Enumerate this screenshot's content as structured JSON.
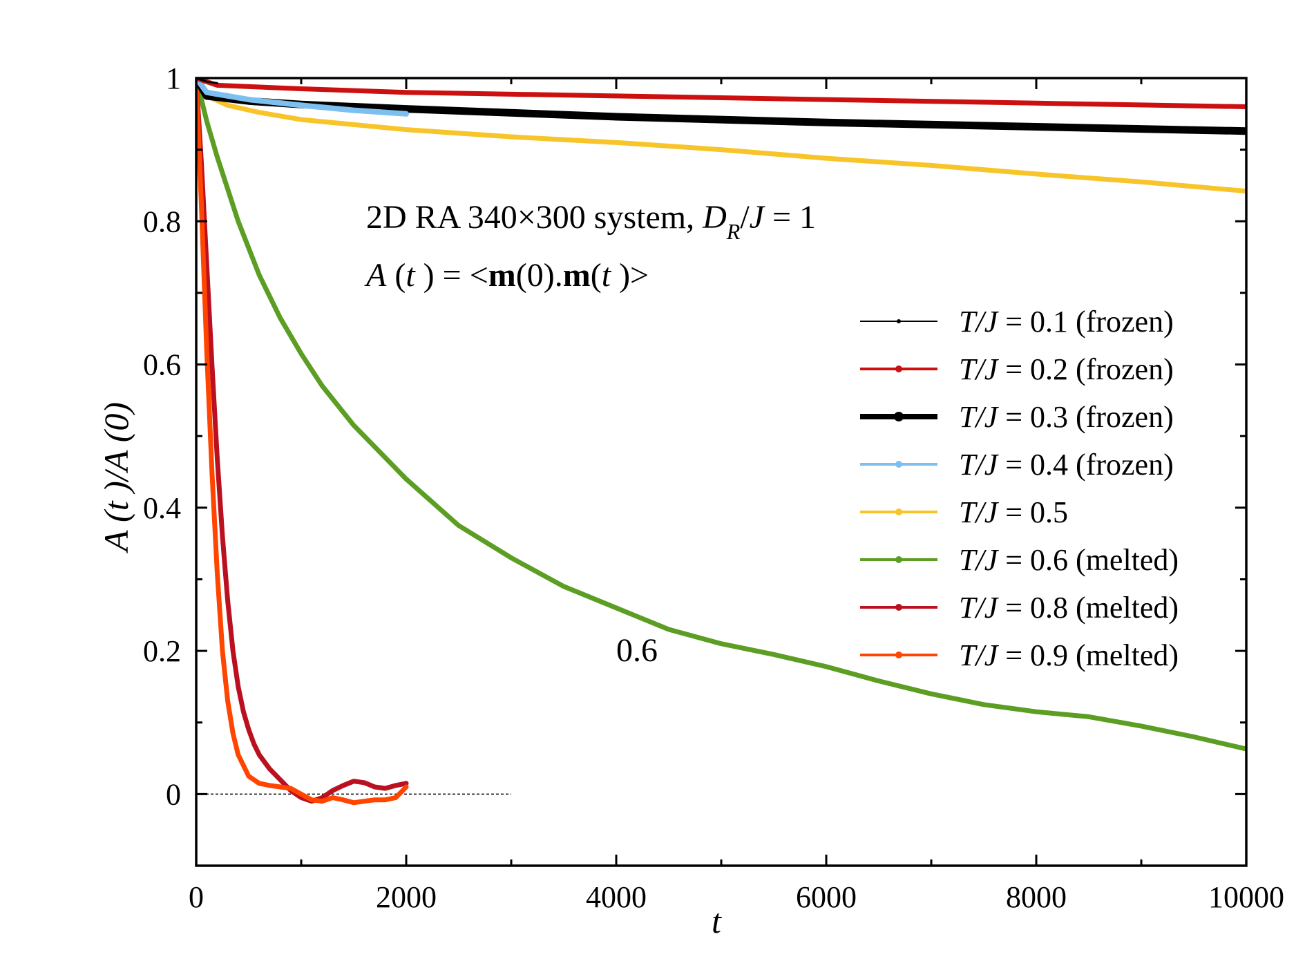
{
  "chart_data": {
    "type": "line",
    "xlabel": "t",
    "ylabel": "A (t )/A (0)",
    "xlim": [
      0,
      10000
    ],
    "ylim": [
      -0.1,
      1.0
    ],
    "x_ticks": [
      0,
      2000,
      4000,
      6000,
      8000,
      10000
    ],
    "x_tick_labels": [
      "0",
      "2000",
      "4000",
      "6000",
      "8000",
      "10000"
    ],
    "y_ticks": [
      0,
      0.2,
      0.4,
      0.6,
      0.8,
      1
    ],
    "y_tick_labels": [
      "0",
      "0.2",
      "0.4",
      "0.6",
      "0.8",
      "1"
    ],
    "x_minor_step": 1000,
    "y_minor_step": 0.1,
    "grid": false,
    "legend_position": "right",
    "annotation_system_parts": [
      "2D RA 340×300 system, ",
      "D",
      "R",
      "/",
      "J",
      " = 1"
    ],
    "annotation_formula_parts": [
      "A",
      " (",
      "t",
      " ) = ",
      " <",
      "m",
      "(0).",
      "m",
      "(",
      "t",
      " )>"
    ],
    "curve_label": "0.6",
    "zero_line": {
      "x": [
        0,
        3000
      ],
      "y": 0
    },
    "series": [
      {
        "name": "T/J = 0.1 (frozen)",
        "legend_italic": "T/J",
        "legend_rest": " = 0.1 (frozen)",
        "color": "#000000",
        "width": 3,
        "x": [
          0,
          100,
          200
        ],
        "y": [
          1.0,
          0.995,
          0.993
        ]
      },
      {
        "name": "T/J = 0.2 (frozen)",
        "legend_italic": "T/J",
        "legend_rest": " = 0.2 (frozen)",
        "color": "#cc1010",
        "width": 7,
        "x": [
          0,
          200,
          1000,
          2000,
          4000,
          6000,
          8000,
          10000
        ],
        "y": [
          1.0,
          0.99,
          0.985,
          0.98,
          0.975,
          0.97,
          0.965,
          0.96
        ]
      },
      {
        "name": "T/J = 0.3 (frozen)",
        "legend_italic": "T/J",
        "legend_rest": " = 0.3 (frozen)",
        "color": "#000000",
        "width": 11,
        "x": [
          0,
          100,
          500,
          1000,
          2000,
          4000,
          6000,
          8000,
          10000
        ],
        "y": [
          1.0,
          0.975,
          0.968,
          0.963,
          0.957,
          0.946,
          0.938,
          0.932,
          0.926
        ]
      },
      {
        "name": "T/J = 0.4 (frozen)",
        "legend_italic": "T/J",
        "legend_rest": " = 0.4 (frozen)",
        "color": "#7dbfee",
        "width": 8,
        "x": [
          0,
          100,
          500,
          1000,
          1500,
          2000
        ],
        "y": [
          1.0,
          0.98,
          0.97,
          0.962,
          0.955,
          0.95
        ]
      },
      {
        "name": "T/J = 0.5",
        "legend_italic": "T/J",
        "legend_rest": " = 0.5",
        "color": "#f7c52a",
        "width": 7,
        "x": [
          0,
          100,
          300,
          600,
          1000,
          2000,
          3000,
          4000,
          5000,
          6000,
          7000,
          8000,
          9000,
          10000
        ],
        "y": [
          1.0,
          0.975,
          0.962,
          0.952,
          0.942,
          0.928,
          0.918,
          0.91,
          0.9,
          0.888,
          0.878,
          0.866,
          0.855,
          0.842
        ]
      },
      {
        "name": "T/J = 0.6 (melted)",
        "legend_italic": "T/J",
        "legend_rest": " = 0.6 (melted)",
        "color": "#5c9e23",
        "width": 7,
        "x": [
          0,
          100,
          200,
          400,
          600,
          800,
          1000,
          1200,
          1500,
          2000,
          2500,
          3000,
          3500,
          4000,
          4500,
          5000,
          5500,
          6000,
          6500,
          7000,
          7500,
          8000,
          8500,
          9000,
          9500,
          10000
        ],
        "y": [
          1.0,
          0.94,
          0.89,
          0.8,
          0.725,
          0.665,
          0.615,
          0.57,
          0.515,
          0.44,
          0.375,
          0.33,
          0.29,
          0.26,
          0.23,
          0.21,
          0.195,
          0.178,
          0.158,
          0.14,
          0.125,
          0.115,
          0.108,
          0.095,
          0.08,
          0.063
        ]
      },
      {
        "name": "T/J = 0.8 (melted)",
        "legend_italic": "T/J",
        "legend_rest": " = 0.8 (melted)",
        "color": "#bb1020",
        "width": 7,
        "x": [
          0,
          50,
          100,
          150,
          200,
          250,
          300,
          350,
          400,
          450,
          500,
          550,
          600,
          700,
          800,
          900,
          1000,
          1100,
          1200,
          1300,
          1400,
          1500,
          1600,
          1700,
          1800,
          1900,
          2000
        ],
        "y": [
          1.0,
          0.88,
          0.74,
          0.6,
          0.47,
          0.36,
          0.27,
          0.2,
          0.15,
          0.115,
          0.09,
          0.07,
          0.055,
          0.035,
          0.02,
          0.005,
          -0.005,
          -0.01,
          -0.005,
          0.005,
          0.012,
          0.018,
          0.016,
          0.01,
          0.008,
          0.012,
          0.015
        ]
      },
      {
        "name": "T/J = 0.9 (melted)",
        "legend_italic": "T/J",
        "legend_rest": " = 0.9 (melted)",
        "color": "#ff4500",
        "width": 7,
        "x": [
          0,
          50,
          100,
          150,
          200,
          250,
          300,
          350,
          400,
          500,
          600,
          700,
          800,
          900,
          1000,
          1100,
          1200,
          1300,
          1400,
          1500,
          1600,
          1700,
          1800,
          1900,
          2000
        ],
        "y": [
          1.0,
          0.82,
          0.62,
          0.45,
          0.31,
          0.2,
          0.13,
          0.085,
          0.055,
          0.025,
          0.015,
          0.012,
          0.01,
          0.008,
          0.0,
          -0.008,
          -0.01,
          -0.005,
          -0.008,
          -0.012,
          -0.01,
          -0.008,
          -0.008,
          -0.005,
          0.01
        ]
      }
    ]
  }
}
